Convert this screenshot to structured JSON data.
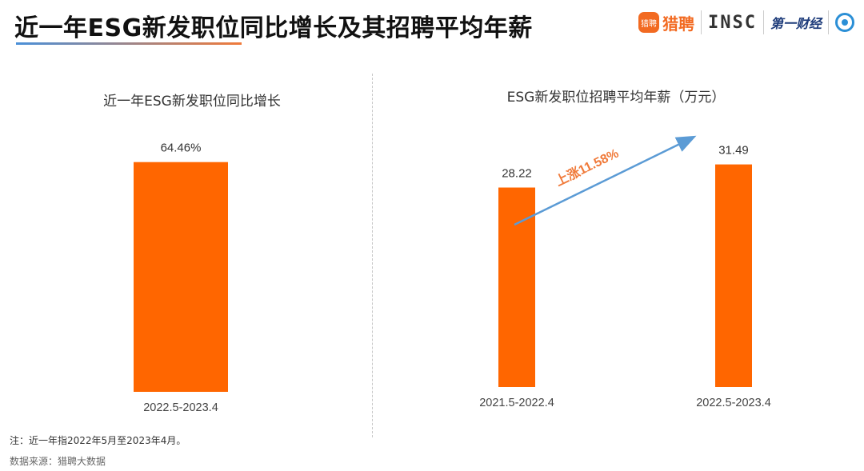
{
  "page": {
    "title": "近一年ESG新发职位同比增长及其招聘平均年薪",
    "footnote": "注：近一年指2022年5月至2023年4月。",
    "source": "数据来源：猎聘大数据"
  },
  "logos": {
    "liepin_mark": "猎聘",
    "liepin_text": "猎聘",
    "insc": "INSC",
    "yicai": "第一财经"
  },
  "colors": {
    "bar": "#ff6600",
    "arrow": "#5b9bd5",
    "annotation": "#f07a3a"
  },
  "chart_data": [
    {
      "type": "bar",
      "title": "近一年ESG新发职位同比增长",
      "categories": [
        "2022.5-2023.4"
      ],
      "values": [
        64.46
      ],
      "value_labels": [
        "64.46%"
      ],
      "unit": "%",
      "ylim": [
        0,
        70
      ],
      "grid": false
    },
    {
      "type": "bar",
      "title": "ESG新发职位招聘平均年薪（万元）",
      "categories": [
        "2021.5-2022.4",
        "2022.5-2023.4"
      ],
      "values": [
        28.22,
        31.49
      ],
      "value_labels": [
        "28.22",
        "31.49"
      ],
      "ylim": [
        0,
        34.5
      ],
      "grid": false,
      "annotation": "上涨11.58%"
    }
  ]
}
